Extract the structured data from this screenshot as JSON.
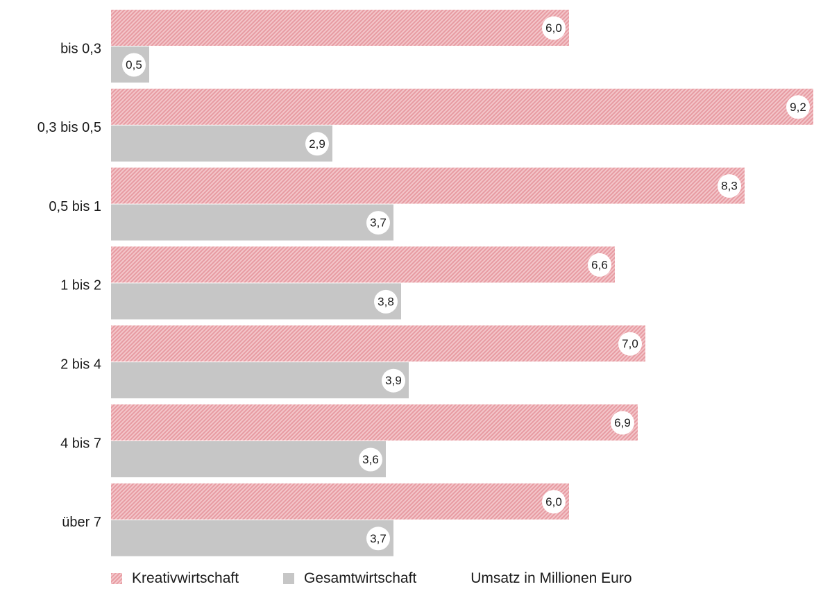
{
  "chart_data": {
    "type": "bar",
    "orientation": "horizontal",
    "categories": [
      "bis 0,3",
      "0,3 bis 0,5",
      "0,5 bis 1",
      "1 bis 2",
      "2 bis 4",
      "4 bis 7",
      "über 7"
    ],
    "series": [
      {
        "name": "Kreativwirtschaft",
        "color": "#eda7ad",
        "values": [
          6.0,
          9.2,
          8.3,
          6.6,
          7.0,
          6.9,
          6.0
        ],
        "labels": [
          "6,0",
          "9,2",
          "8,3",
          "6,6",
          "7,0",
          "6,9",
          "6,0"
        ]
      },
      {
        "name": "Gesamtwirtschaft",
        "color": "#c6c6c6",
        "values": [
          0.5,
          2.9,
          3.7,
          3.8,
          3.9,
          3.6,
          3.7
        ],
        "labels": [
          "0,5",
          "2,9",
          "3,7",
          "3,8",
          "3,9",
          "3,6",
          "3,7"
        ]
      }
    ],
    "xlim": [
      0,
      9.2
    ],
    "grid": false,
    "legend_placement": "bottom",
    "unit_note": "Umsatz in Millionen Euro"
  }
}
